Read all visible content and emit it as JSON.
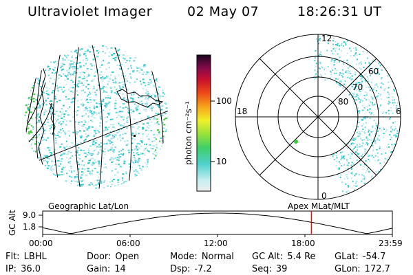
{
  "header": {
    "title": "Ultraviolet Imager",
    "date": "02 May 07",
    "time": "18:26:31 UT"
  },
  "colorbar": {
    "label": "photon cm⁻²s⁻¹",
    "ticks": [
      "100",
      "10"
    ]
  },
  "polar": {
    "labels": {
      "top": "12",
      "left": "18",
      "right": "6",
      "bottom": "0",
      "r60": "60",
      "r70": "70",
      "r80": "80"
    }
  },
  "timeline": {
    "left_label": "Geographic Lat/Lon",
    "right_label": "Apex MLat/MLT",
    "y_axis_label": "GC Alt",
    "y_ticks": [
      "9.0",
      "1.8"
    ],
    "x_ticks": [
      "00:00",
      "06:00",
      "12:00",
      "18:00",
      "23:59"
    ],
    "marker_color": "#cc0000",
    "altitude_color": "#000000"
  },
  "info": {
    "filter": {
      "label": "Flt:",
      "value": "LBHL"
    },
    "ip": {
      "label": "IP:",
      "value": "36.0"
    },
    "door": {
      "label": "Door:",
      "value": "Open"
    },
    "gain": {
      "label": "Gain:",
      "value": "14"
    },
    "mode": {
      "label": "Mode:",
      "value": "Normal"
    },
    "dsp": {
      "label": "Dsp:",
      "value": "-7.2"
    },
    "gcalt": {
      "label": "GC Alt:",
      "value": "5.4 Re"
    },
    "seq": {
      "label": "Seq:",
      "value": "39"
    },
    "glat": {
      "label": "GLat:",
      "value": "-54.7"
    },
    "glon": {
      "label": "GLon:",
      "value": "172.7"
    }
  },
  "colors": {
    "dots": [
      "#bfe8ec",
      "#8fdde6",
      "#5ed2d8",
      "#2fc6c4"
    ],
    "green": "#39c83a"
  }
}
